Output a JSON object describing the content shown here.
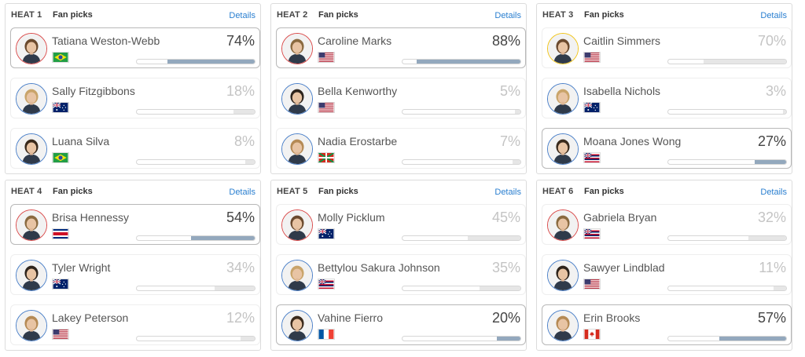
{
  "heats": [
    {
      "heat_label": "HEAT 1",
      "fan_label": "Fan picks",
      "details_label": "Details",
      "surfers": [
        {
          "name": "Tatiana Weston-Webb",
          "percent_label": "74%",
          "percent": 74,
          "flag": "brazil-flag",
          "ring": "red",
          "picked": true
        },
        {
          "name": "Sally Fitzgibbons",
          "percent_label": "18%",
          "percent": 18,
          "flag": "australia-flag",
          "ring": "blue",
          "picked": false
        },
        {
          "name": "Luana Silva",
          "percent_label": "8%",
          "percent": 8,
          "flag": "brazil-flag",
          "ring": "blue",
          "picked": false
        }
      ]
    },
    {
      "heat_label": "HEAT 2",
      "fan_label": "Fan picks",
      "details_label": "Details",
      "surfers": [
        {
          "name": "Caroline Marks",
          "percent_label": "88%",
          "percent": 88,
          "flag": "usa-flag",
          "ring": "red",
          "picked": true
        },
        {
          "name": "Bella Kenworthy",
          "percent_label": "5%",
          "percent": 5,
          "flag": "usa-flag",
          "ring": "blue",
          "picked": false
        },
        {
          "name": "Nadia Erostarbe",
          "percent_label": "7%",
          "percent": 7,
          "flag": "basque-flag",
          "ring": "blue",
          "picked": false
        }
      ]
    },
    {
      "heat_label": "HEAT 3",
      "fan_label": "Fan picks",
      "details_label": "Details",
      "surfers": [
        {
          "name": "Caitlin Simmers",
          "percent_label": "70%",
          "percent": 70,
          "flag": "usa-flag",
          "ring": "gold",
          "picked": false
        },
        {
          "name": "Isabella Nichols",
          "percent_label": "3%",
          "percent": 3,
          "flag": "australia-flag",
          "ring": "blue",
          "picked": false
        },
        {
          "name": "Moana Jones Wong",
          "percent_label": "27%",
          "percent": 27,
          "flag": "hawaii-flag",
          "ring": "blue",
          "picked": true
        }
      ]
    },
    {
      "heat_label": "HEAT 4",
      "fan_label": "Fan picks",
      "details_label": "Details",
      "surfers": [
        {
          "name": "Brisa Hennessy",
          "percent_label": "54%",
          "percent": 54,
          "flag": "costa-rica-flag",
          "ring": "red",
          "picked": true
        },
        {
          "name": "Tyler Wright",
          "percent_label": "34%",
          "percent": 34,
          "flag": "australia-flag",
          "ring": "blue",
          "picked": false
        },
        {
          "name": "Lakey Peterson",
          "percent_label": "12%",
          "percent": 12,
          "flag": "usa-flag",
          "ring": "blue",
          "picked": false
        }
      ]
    },
    {
      "heat_label": "HEAT 5",
      "fan_label": "Fan picks",
      "details_label": "Details",
      "surfers": [
        {
          "name": "Molly Picklum",
          "percent_label": "45%",
          "percent": 45,
          "flag": "australia-flag",
          "ring": "red",
          "picked": false
        },
        {
          "name": "Bettylou Sakura Johnson",
          "percent_label": "35%",
          "percent": 35,
          "flag": "hawaii-flag",
          "ring": "blue",
          "picked": false
        },
        {
          "name": "Vahine Fierro",
          "percent_label": "20%",
          "percent": 20,
          "flag": "france-flag",
          "ring": "blue",
          "picked": true
        }
      ]
    },
    {
      "heat_label": "HEAT 6",
      "fan_label": "Fan picks",
      "details_label": "Details",
      "surfers": [
        {
          "name": "Gabriela Bryan",
          "percent_label": "32%",
          "percent": 32,
          "flag": "hawaii-flag",
          "ring": "red",
          "picked": false
        },
        {
          "name": "Sawyer Lindblad",
          "percent_label": "11%",
          "percent": 11,
          "flag": "usa-flag",
          "ring": "blue",
          "picked": false
        },
        {
          "name": "Erin Brooks",
          "percent_label": "57%",
          "percent": 57,
          "flag": "canada-flag",
          "ring": "blue",
          "picked": true
        }
      ]
    }
  ],
  "colors": {
    "accent_link": "#2a7fd0",
    "picked_bar": "#93a8bd",
    "unpicked_bar": "#e6e6e6",
    "ring_red": "#d94a4a",
    "ring_blue": "#4a7fc8",
    "ring_gold": "#f0c419"
  }
}
